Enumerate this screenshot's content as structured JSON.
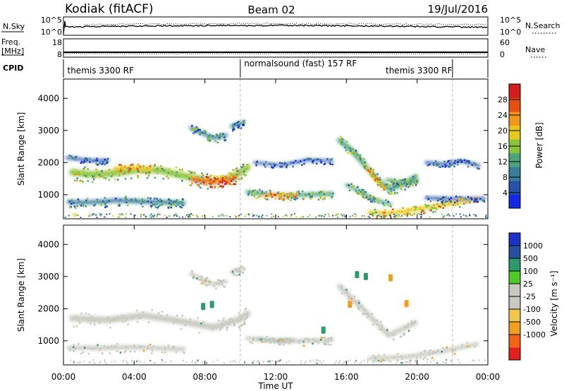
{
  "header": {
    "site": "Kodiak (fitACF)",
    "beam": "Beam 02",
    "date": "19/Jul/2016"
  },
  "strips": {
    "nsky": {
      "label": "N.Sky",
      "ticks": [
        "10^5",
        "10^0"
      ],
      "right_label": "N.Search",
      "right_ticks": [
        "10^5",
        "10^0"
      ]
    },
    "freq": {
      "label_line1": "Freq.",
      "label_line2": "[MHz]",
      "ticks": [
        "18",
        "8"
      ],
      "right_label": "Nave",
      "right_ticks": [
        "60",
        "0"
      ]
    },
    "cpid": {
      "label": "CPID",
      "segments": [
        {
          "text": "themis 3300 RF",
          "start": 0.0,
          "end": 10.0
        },
        {
          "text": "normalsound (fast) 157 RF",
          "start": 10.0,
          "end": 22.0
        },
        {
          "text": "themis 3300 RF",
          "start": 22.0,
          "end": 24.0
        }
      ],
      "segment_label_positions_hours": [
        0.1,
        10.1,
        18.1
      ]
    }
  },
  "colors": {
    "power_scale": [
      "#1428e6",
      "#2850a8",
      "#3a7d9a",
      "#4ea37c",
      "#8ac43c",
      "#e6c81e",
      "#f0961e",
      "#e65014",
      "#d21e1e"
    ],
    "velocity_scale": [
      "#e61e1e",
      "#f06414",
      "#f0a01e",
      "#f0c850",
      "#c8c8c0",
      "#c8c8c0",
      "#50c828",
      "#2c9a6c",
      "#2a4fa0",
      "#1e32c8"
    ]
  },
  "chart_data": [
    {
      "type": "heatmap",
      "name": "power",
      "ylabel": "Slant Range [km]",
      "xlabel": "",
      "x_ticks": [
        "00:00",
        "04:00",
        "08:00",
        "12:00",
        "16:00",
        "20:00",
        "00:00"
      ],
      "xlim_hours": [
        0,
        24
      ],
      "ylim": [
        250,
        4600
      ],
      "y_ticks": [
        1000,
        2000,
        3000,
        4000
      ],
      "colorbar_label": "Power [dB]",
      "colorbar_ticks": [
        4,
        8,
        12,
        16,
        20,
        24,
        28
      ],
      "colorbar_range": [
        0,
        32
      ],
      "features": [
        {
          "points": [
            [
              0.3,
              780
            ],
            [
              1,
              750
            ],
            [
              2,
              780
            ],
            [
              3,
              820
            ],
            [
              4,
              800
            ],
            [
              5,
              780
            ],
            [
              6,
              760
            ],
            [
              6.8,
              740
            ]
          ],
          "width": 130,
          "power": 10
        },
        {
          "points": [
            [
              0.5,
              1700
            ],
            [
              1.5,
              1630
            ],
            [
              2.5,
              1650
            ],
            [
              3.5,
              1720
            ],
            [
              4.5,
              1790
            ],
            [
              5.5,
              1760
            ],
            [
              6.5,
              1620
            ],
            [
              7.5,
              1500
            ],
            [
              8.5,
              1420
            ],
            [
              9.3,
              1500
            ],
            [
              10,
              1680
            ],
            [
              10.4,
              1850
            ]
          ],
          "width": 200,
          "power": 16
        },
        {
          "points": [
            [
              7.3,
              1470
            ],
            [
              8.3,
              1400
            ],
            [
              9,
              1430
            ],
            [
              9.7,
              1520
            ]
          ],
          "width": 140,
          "power": 26
        },
        {
          "points": [
            [
              3,
              1820
            ],
            [
              4,
              1830
            ],
            [
              5,
              1800
            ]
          ],
          "width": 120,
          "power": 21
        },
        {
          "points": [
            [
              0.2,
              2150
            ],
            [
              1.5,
              2070
            ],
            [
              2.5,
              2060
            ]
          ],
          "width": 90,
          "power": 6
        },
        {
          "points": [
            [
              7.2,
              3080
            ],
            [
              7.8,
              2930
            ],
            [
              8.5,
              2760
            ],
            [
              9.2,
              2850
            ]
          ],
          "width": 110,
          "power": 10
        },
        {
          "points": [
            [
              9.5,
              3130
            ],
            [
              10.2,
              3250
            ]
          ],
          "width": 100,
          "power": 8
        },
        {
          "points": [
            [
              10.4,
              1080
            ],
            [
              11.3,
              1020
            ],
            [
              12.3,
              980
            ],
            [
              13.3,
              990
            ],
            [
              14.3,
              1010
            ],
            [
              15.2,
              1030
            ]
          ],
          "width": 120,
          "power": 14
        },
        {
          "points": [
            [
              11.3,
              1010
            ],
            [
              12.3,
              980
            ],
            [
              13.2,
              990
            ]
          ],
          "width": 80,
          "power": 22
        },
        {
          "points": [
            [
              10.8,
              2000
            ],
            [
              12.3,
              1920
            ],
            [
              13.8,
              2080
            ],
            [
              15.2,
              2050
            ]
          ],
          "width": 80,
          "power": 7
        },
        {
          "points": [
            [
              15.6,
              2700
            ],
            [
              16.3,
              2380
            ],
            [
              17,
              1950
            ],
            [
              17.7,
              1500
            ],
            [
              18.4,
              1170
            ],
            [
              19.2,
              1320
            ],
            [
              19.9,
              1560
            ]
          ],
          "width": 150,
          "power": 14
        },
        {
          "points": [
            [
              17.1,
              1900
            ],
            [
              17.6,
              1530
            ],
            [
              18.1,
              1230
            ]
          ],
          "width": 80,
          "power": 20
        },
        {
          "points": [
            [
              18.3,
              1460
            ],
            [
              19.1,
              1380
            ],
            [
              20,
              1450
            ]
          ],
          "width": 100,
          "power": 12
        },
        {
          "points": [
            [
              16,
              1300
            ],
            [
              16.8,
              1100
            ],
            [
              17.5,
              860
            ],
            [
              18.5,
              700
            ]
          ],
          "width": 100,
          "power": 12
        },
        {
          "points": [
            [
              17.3,
              450
            ],
            [
              18.4,
              420
            ],
            [
              19.5,
              500
            ],
            [
              20.5,
              600
            ],
            [
              21.5,
              680
            ],
            [
              22.5,
              780
            ],
            [
              23.4,
              900
            ]
          ],
          "width": 120,
          "power": 19
        },
        {
          "points": [
            [
              20.5,
              900
            ],
            [
              22,
              870
            ],
            [
              23.8,
              880
            ]
          ],
          "width": 90,
          "power": 7
        },
        {
          "points": [
            [
              20.5,
              2000
            ],
            [
              21.5,
              1950
            ],
            [
              22.5,
              2050
            ],
            [
              23.5,
              1900
            ]
          ],
          "width": 90,
          "power": 7
        }
      ]
    },
    {
      "type": "heatmap",
      "name": "velocity",
      "ylabel": "Slant Range [km]",
      "xlabel": "Time UT",
      "x_ticks": [
        "00:00",
        "04:00",
        "08:00",
        "12:00",
        "16:00",
        "20:00",
        "00:00"
      ],
      "xlim_hours": [
        0,
        24
      ],
      "ylim": [
        250,
        4600
      ],
      "y_ticks": [
        1000,
        2000,
        3000,
        4000
      ],
      "colorbar_label": "Velocity [m s⁻¹]",
      "colorbar_ticks": [
        1000,
        500,
        100,
        25,
        -25,
        -100,
        -500,
        -1000
      ],
      "features": [
        {
          "points": [
            [
              0.3,
              780
            ],
            [
              2,
              780
            ],
            [
              4,
              800
            ],
            [
              6.8,
              740
            ]
          ],
          "width": 130,
          "velocity": 0
        },
        {
          "points": [
            [
              0.5,
              1700
            ],
            [
              2.5,
              1650
            ],
            [
              4.5,
              1790
            ],
            [
              6.5,
              1620
            ],
            [
              8.5,
              1420
            ],
            [
              10,
              1680
            ],
            [
              10.4,
              1850
            ]
          ],
          "width": 200,
          "velocity": 0
        },
        {
          "points": [
            [
              10.4,
              1080
            ],
            [
              12.3,
              980
            ],
            [
              14.3,
              1010
            ],
            [
              15.2,
              1030
            ]
          ],
          "width": 120,
          "velocity": 0
        },
        {
          "points": [
            [
              11,
              1050
            ],
            [
              12,
              1020
            ],
            [
              13,
              1040
            ]
          ],
          "width": 50,
          "velocity": 150
        },
        {
          "points": [
            [
              15.6,
              2700
            ],
            [
              17,
              1950
            ],
            [
              18.4,
              1170
            ],
            [
              19.9,
              1560
            ]
          ],
          "width": 150,
          "velocity": 0
        },
        {
          "points": [
            [
              17.3,
              450
            ],
            [
              19.5,
              500
            ],
            [
              21.5,
              680
            ],
            [
              23.4,
              900
            ]
          ],
          "width": 120,
          "velocity": 0
        },
        {
          "points": [
            [
              7.2,
              3080
            ],
            [
              8.5,
              2760
            ],
            [
              9.2,
              2850
            ]
          ],
          "width": 110,
          "velocity": 0
        },
        {
          "points": [
            [
              9.5,
              3130
            ],
            [
              10.2,
              3250
            ]
          ],
          "width": 100,
          "velocity": 0
        }
      ],
      "patches": [
        {
          "x": 16.6,
          "y": 3060,
          "velocity": 200
        },
        {
          "x": 17.1,
          "y": 3000,
          "velocity": 250
        },
        {
          "x": 16.2,
          "y": 2140,
          "velocity": -300
        },
        {
          "x": 18.5,
          "y": 2960,
          "velocity": -300
        },
        {
          "x": 19.4,
          "y": 2160,
          "velocity": -300
        },
        {
          "x": 7.9,
          "y": 2070,
          "velocity": 150
        },
        {
          "x": 8.4,
          "y": 2130,
          "velocity": 150
        },
        {
          "x": 14.7,
          "y": 1330,
          "velocity": 150
        }
      ]
    }
  ]
}
